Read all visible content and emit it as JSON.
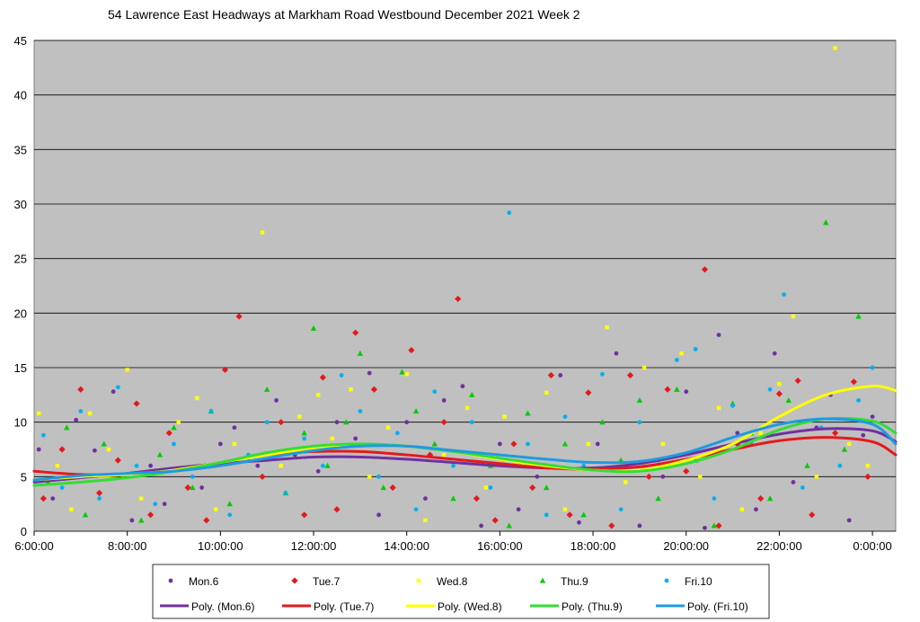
{
  "chart_data": {
    "type": "scatter",
    "title": "54 Lawrence East Headways at Markham Road Westbound December 2021  Week 2",
    "x_ticks": [
      "6:00:00",
      "8:00:00",
      "10:00:00",
      "12:00:00",
      "14:00:00",
      "16:00:00",
      "18:00:00",
      "20:00:00",
      "22:00:00",
      "0:00:00"
    ],
    "x_tick_hours": [
      6,
      8,
      10,
      12,
      14,
      16,
      18,
      20,
      22,
      24
    ],
    "xlim_hours": [
      6,
      24.5
    ],
    "y_ticks": [
      "0",
      "5",
      "10",
      "15",
      "20",
      "25",
      "30",
      "35",
      "40",
      "45"
    ],
    "y_tick_values": [
      0,
      5,
      10,
      15,
      20,
      25,
      30,
      35,
      40,
      45
    ],
    "ylim": [
      0,
      45
    ],
    "series": [
      {
        "name": "Mon.6",
        "marker": "circle",
        "color": "#7030A0",
        "x": [
          6.1,
          6.4,
          6.9,
          7.3,
          7.7,
          8.1,
          8.5,
          8.8,
          9.2,
          9.6,
          10.0,
          10.3,
          10.8,
          11.2,
          11.6,
          12.1,
          12.5,
          12.9,
          13.2,
          13.4,
          14.0,
          14.4,
          14.8,
          15.2,
          15.6,
          16.0,
          16.4,
          16.8,
          17.3,
          17.7,
          18.1,
          18.5,
          19.0,
          19.5,
          20.0,
          20.4,
          20.7,
          21.1,
          21.5,
          21.9,
          22.3,
          22.8,
          23.1,
          23.5,
          23.8,
          24.0
        ],
        "y": [
          7.5,
          3.0,
          10.2,
          7.4,
          12.8,
          1.0,
          6.0,
          2.5,
          5.8,
          4.0,
          8.0,
          9.5,
          6.0,
          12.0,
          7.0,
          5.5,
          10.0,
          8.5,
          14.5,
          1.5,
          10.0,
          3.0,
          12.0,
          13.3,
          0.5,
          8.0,
          2.0,
          5.0,
          14.3,
          0.8,
          8.0,
          16.3,
          0.5,
          5.0,
          12.8,
          0.3,
          18.0,
          9.0,
          2.0,
          16.3,
          4.5,
          9.5,
          12.5,
          1.0,
          8.8,
          10.5
        ]
      },
      {
        "name": "Tue.7",
        "marker": "diamond",
        "color": "#E31A1C",
        "x": [
          6.2,
          6.6,
          7.0,
          7.4,
          7.8,
          8.2,
          8.5,
          8.9,
          9.3,
          9.7,
          10.1,
          10.4,
          10.9,
          11.3,
          11.8,
          12.2,
          12.5,
          12.9,
          13.3,
          13.7,
          14.1,
          14.5,
          14.8,
          15.1,
          15.5,
          15.9,
          16.3,
          16.7,
          17.1,
          17.5,
          17.9,
          18.4,
          18.8,
          19.2,
          19.6,
          20.0,
          20.4,
          20.7,
          21.1,
          21.6,
          22.0,
          22.4,
          22.7,
          23.2,
          23.6,
          23.9
        ],
        "y": [
          3.0,
          7.5,
          13.0,
          3.5,
          6.5,
          11.7,
          1.5,
          9.0,
          4.0,
          1.0,
          14.8,
          19.7,
          5.0,
          10.0,
          1.5,
          14.1,
          2.0,
          18.2,
          13.0,
          4.0,
          16.6,
          7.0,
          10.0,
          21.3,
          3.0,
          1.0,
          8.0,
          4.0,
          14.3,
          1.5,
          12.7,
          0.5,
          14.3,
          5.0,
          13.0,
          5.5,
          24.0,
          0.5,
          8.0,
          3.0,
          12.6,
          13.8,
          1.5,
          9.0,
          13.7,
          5.0
        ]
      },
      {
        "name": "Wed.8",
        "marker": "square",
        "color": "#FFFF00",
        "x": [
          6.1,
          6.5,
          6.8,
          7.2,
          7.6,
          8.0,
          8.3,
          8.7,
          9.1,
          9.5,
          9.9,
          10.3,
          10.9,
          11.3,
          11.7,
          12.1,
          12.4,
          12.8,
          13.2,
          13.6,
          14.0,
          14.4,
          14.8,
          15.3,
          15.7,
          16.1,
          16.5,
          17.0,
          17.4,
          17.9,
          18.3,
          18.7,
          19.1,
          19.5,
          19.9,
          20.3,
          20.7,
          21.2,
          21.6,
          22.0,
          22.3,
          22.8,
          23.2,
          23.5,
          23.9
        ],
        "y": [
          10.8,
          6.0,
          2.0,
          10.8,
          7.5,
          14.8,
          3.0,
          5.5,
          10.0,
          12.2,
          2.0,
          8.0,
          27.4,
          6.0,
          10.5,
          12.5,
          8.5,
          13.0,
          5.0,
          9.5,
          14.4,
          1.0,
          7.0,
          11.3,
          4.0,
          10.5,
          6.0,
          12.7,
          2.0,
          8.0,
          18.7,
          4.5,
          15.0,
          8.0,
          16.3,
          5.0,
          11.3,
          2.0,
          9.0,
          13.5,
          19.7,
          5.0,
          44.3,
          8.0,
          6.0
        ]
      },
      {
        "name": "Thu.9",
        "marker": "triangle",
        "color": "#00CC00",
        "x": [
          6.3,
          6.7,
          7.1,
          7.5,
          7.9,
          8.3,
          8.7,
          9.0,
          9.4,
          9.8,
          10.2,
          10.6,
          11.0,
          11.4,
          11.8,
          12.0,
          12.3,
          12.7,
          13.0,
          13.5,
          13.9,
          14.2,
          14.6,
          15.0,
          15.4,
          15.8,
          16.2,
          16.6,
          17.0,
          17.4,
          17.8,
          18.2,
          18.6,
          19.0,
          19.4,
          19.8,
          20.2,
          20.6,
          21.0,
          21.4,
          21.8,
          22.2,
          22.6,
          23.0,
          23.4,
          23.7
        ],
        "y": [
          4.5,
          9.5,
          1.5,
          8.0,
          5.0,
          1.0,
          7.0,
          9.5,
          4.0,
          11.0,
          2.5,
          6.5,
          13.0,
          3.5,
          9.0,
          18.6,
          6.0,
          10.0,
          16.3,
          4.0,
          14.6,
          11.0,
          8.0,
          3.0,
          12.5,
          6.0,
          0.5,
          10.8,
          4.0,
          8.0,
          1.5,
          10.0,
          6.5,
          12.0,
          3.0,
          13.0,
          6.5,
          0.5,
          11.7,
          9.0,
          3.0,
          12.0,
          6.0,
          28.3,
          7.5,
          19.7
        ]
      },
      {
        "name": "Fri.10",
        "marker": "circle",
        "color": "#00B0F0",
        "x": [
          6.2,
          6.6,
          7.0,
          7.4,
          7.8,
          8.2,
          8.6,
          9.0,
          9.4,
          9.8,
          10.2,
          10.6,
          11.0,
          11.4,
          11.8,
          12.2,
          12.6,
          13.0,
          13.4,
          13.8,
          14.2,
          14.6,
          15.0,
          15.4,
          15.8,
          16.2,
          16.6,
          17.0,
          17.4,
          17.8,
          18.2,
          18.6,
          19.0,
          19.4,
          19.8,
          20.2,
          20.6,
          21.0,
          21.4,
          21.8,
          22.1,
          22.5,
          22.9,
          23.3,
          23.7,
          24.0
        ],
        "y": [
          8.8,
          4.0,
          11.0,
          3.0,
          13.2,
          6.0,
          2.5,
          8.0,
          5.0,
          11.0,
          1.5,
          7.0,
          10.0,
          3.5,
          8.5,
          6.0,
          14.3,
          11.0,
          5.0,
          9.0,
          2.0,
          12.8,
          6.0,
          10.0,
          4.0,
          29.2,
          8.0,
          1.5,
          10.5,
          6.0,
          14.4,
          2.0,
          10.0,
          6.5,
          15.7,
          16.7,
          3.0,
          11.5,
          8.0,
          13.0,
          21.7,
          4.0,
          9.5,
          6.0,
          12.0,
          15.0
        ]
      }
    ],
    "trendlines": [
      {
        "name": "Poly. (Mon.6)",
        "color": "#7030A0",
        "x": [
          6,
          7,
          8,
          9,
          10,
          11,
          12,
          13,
          14,
          15,
          16,
          17,
          18,
          19,
          20,
          21,
          22,
          23,
          24,
          24.5
        ],
        "y": [
          4.5,
          4.9,
          5.3,
          5.8,
          6.2,
          6.5,
          6.8,
          6.8,
          6.6,
          6.3,
          6.0,
          5.8,
          5.8,
          6.2,
          7.0,
          8.0,
          8.9,
          9.4,
          9.2,
          8.2
        ]
      },
      {
        "name": "Poly. (Tue.7)",
        "color": "#E31A1C",
        "x": [
          6,
          7,
          8,
          9,
          10,
          11,
          12,
          13,
          14,
          15,
          16,
          17,
          18,
          19,
          20,
          21,
          22,
          23,
          24,
          24.5
        ],
        "y": [
          5.5,
          5.2,
          5.2,
          5.6,
          6.3,
          7.0,
          7.3,
          7.3,
          7.0,
          6.6,
          6.2,
          5.8,
          5.7,
          5.9,
          6.6,
          7.5,
          8.3,
          8.6,
          8.2,
          7.0
        ]
      },
      {
        "name": "Poly. (Wed.8)",
        "color": "#FFFF00",
        "x": [
          6,
          7,
          8,
          9,
          10,
          11,
          12,
          13,
          14,
          15,
          16,
          17,
          18,
          19,
          20,
          21,
          22,
          23,
          24,
          24.5
        ],
        "y": [
          4.7,
          5.0,
          5.2,
          5.6,
          6.3,
          7.0,
          7.6,
          7.9,
          7.8,
          7.3,
          6.6,
          6.0,
          5.6,
          5.6,
          6.5,
          8.0,
          10.5,
          12.5,
          13.3,
          12.9
        ]
      },
      {
        "name": "Poly. (Thu.9)",
        "color": "#33DD33",
        "x": [
          6,
          7,
          8,
          9,
          10,
          11,
          12,
          13,
          14,
          15,
          16,
          17,
          18,
          19,
          20,
          21,
          22,
          23,
          24,
          24.5
        ],
        "y": [
          4.2,
          4.5,
          4.9,
          5.5,
          6.3,
          7.2,
          7.8,
          8.0,
          7.8,
          7.3,
          6.7,
          6.1,
          5.6,
          5.5,
          6.2,
          7.5,
          9.3,
          10.3,
          10.1,
          9.0
        ]
      },
      {
        "name": "Poly. (Fri.10)",
        "color": "#1E9BE0",
        "x": [
          6,
          7,
          8,
          9,
          10,
          11,
          12,
          13,
          14,
          15,
          16,
          17,
          18,
          19,
          20,
          21,
          22,
          23,
          24,
          24.5
        ],
        "y": [
          4.7,
          5.1,
          5.3,
          5.5,
          6.0,
          6.7,
          7.4,
          7.8,
          7.8,
          7.4,
          7.0,
          6.6,
          6.3,
          6.4,
          7.2,
          8.6,
          9.8,
          10.3,
          9.8,
          8.0
        ]
      }
    ],
    "legend": {
      "placement": "bottom",
      "row1": [
        "Mon.6",
        "Tue.7",
        "Wed.8",
        "Thu.9",
        "Fri.10"
      ],
      "row2": [
        "Poly. (Mon.6)",
        "Poly. (Tue.7)",
        "Poly. (Wed.8)",
        "Poly. (Thu.9)",
        "Poly. (Fri.10)"
      ]
    },
    "colors": {
      "plot_background": "#C0C0C0",
      "gridline": "#000000"
    }
  }
}
